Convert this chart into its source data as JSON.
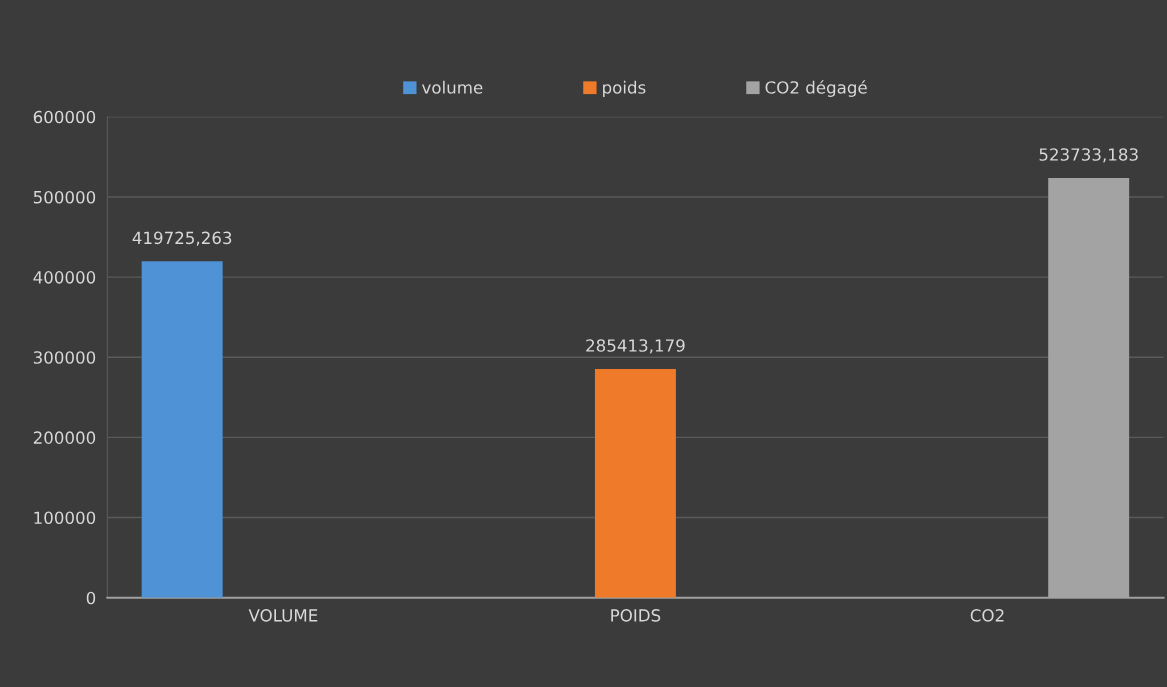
{
  "chart_data": {
    "type": "bar",
    "categories": [
      "VOLUME",
      "POIDS",
      "CO2"
    ],
    "series": [
      {
        "name": "volume",
        "color": "#4f92d5",
        "values": [
          419725.263,
          null,
          null
        ],
        "value_labels": [
          "419725,263",
          null,
          null
        ]
      },
      {
        "name": "poids",
        "color": "#ef7b2a",
        "values": [
          null,
          285413.179,
          null
        ],
        "value_labels": [
          null,
          "285413,179",
          null
        ]
      },
      {
        "name": "CO2 dégagé",
        "color": "#a3a3a3",
        "values": [
          null,
          null,
          523733.183
        ],
        "value_labels": [
          null,
          null,
          "523733,183"
        ]
      }
    ],
    "ylim": [
      0,
      600000
    ],
    "yticks": [
      0,
      100000,
      200000,
      300000,
      400000,
      500000,
      600000
    ],
    "grid": "y",
    "legend": "top"
  }
}
